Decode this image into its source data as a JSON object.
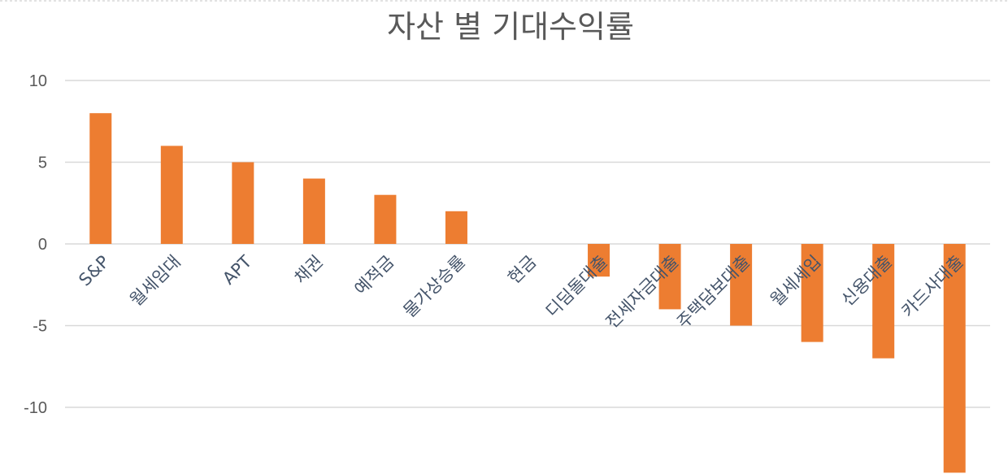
{
  "chart_data": {
    "type": "bar",
    "title": "자산 별 기대수익률",
    "xlabel": "",
    "ylabel": "",
    "categories": [
      "S&P",
      "월세임대",
      "APT",
      "채권",
      "예적금",
      "물가상승률",
      "현금",
      "디딤돌대출",
      "전세자금대출",
      "주택담보대출",
      "월세세입",
      "신용대출",
      "카드사대출"
    ],
    "values": [
      8,
      6,
      5,
      4,
      3,
      2,
      0,
      -2,
      -4,
      -5,
      -6,
      -7,
      -14
    ],
    "yticks": [
      10,
      5,
      0,
      -5,
      -10
    ],
    "ylim": [
      -14,
      10
    ],
    "grid": true,
    "legend": "none",
    "bar_color": "#ed7d31"
  }
}
